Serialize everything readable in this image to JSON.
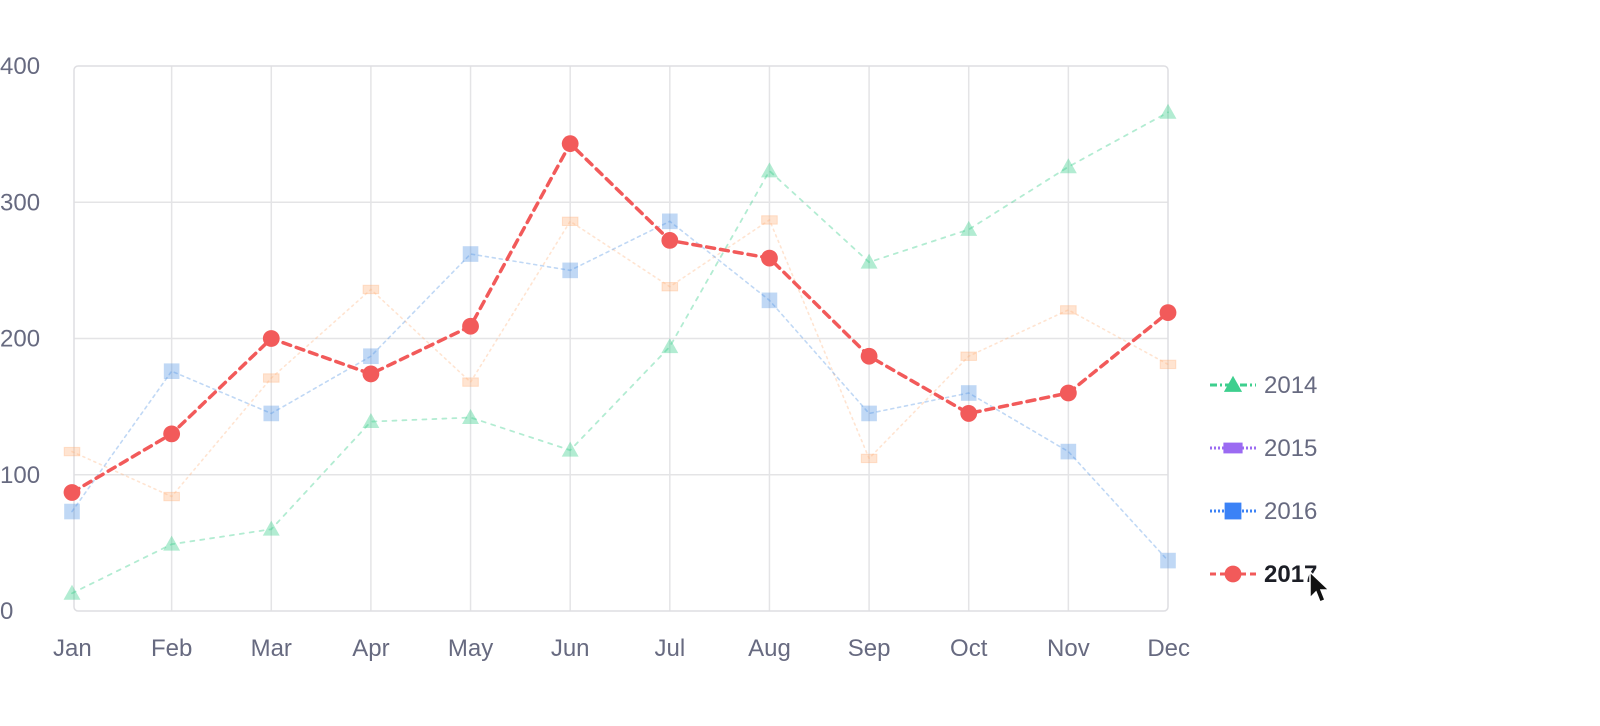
{
  "chart_data": {
    "type": "line",
    "categories": [
      "Jan",
      "Feb",
      "Mar",
      "Apr",
      "May",
      "Jun",
      "Jul",
      "Aug",
      "Sep",
      "Oct",
      "Nov",
      "Dec"
    ],
    "ylim": [
      0,
      400
    ],
    "yticks": [
      0,
      100,
      200,
      300,
      400
    ],
    "grid": true,
    "legend_position": "right",
    "highlighted_series": "2017",
    "series": [
      {
        "name": "2014",
        "color": "#3ecf8e",
        "marker": "triangle",
        "values": [
          13,
          49,
          60,
          139,
          142,
          118,
          194,
          323,
          256,
          280,
          326,
          366
        ]
      },
      {
        "name": "2015",
        "color": "#ffb27a",
        "marker": "rect",
        "values": [
          117,
          84,
          171,
          236,
          168,
          286,
          238,
          287,
          112,
          187,
          221,
          181
        ]
      },
      {
        "name": "2016",
        "color": "#4a90e2",
        "marker": "square",
        "values": [
          73,
          176,
          145,
          187,
          262,
          250,
          286,
          228,
          145,
          160,
          117,
          37
        ]
      },
      {
        "name": "2017",
        "color": "#f25a5a",
        "marker": "circle",
        "values": [
          87,
          130,
          200,
          174,
          209,
          343,
          272,
          259,
          187,
          145,
          160,
          219
        ]
      }
    ],
    "legend": [
      {
        "label": "2014",
        "color": "#3ecf8e",
        "marker": "triangle",
        "line": "dashdot"
      },
      {
        "label": "2015",
        "color": "#9b6bf2",
        "marker": "rect",
        "line": "dotted"
      },
      {
        "label": "2016",
        "color": "#3b82f6",
        "marker": "square",
        "line": "dotted"
      },
      {
        "label": "2017",
        "color": "#f25a5a",
        "marker": "circle",
        "line": "dashed"
      }
    ]
  },
  "cursor": {
    "icon": "mouse-pointer-icon"
  }
}
